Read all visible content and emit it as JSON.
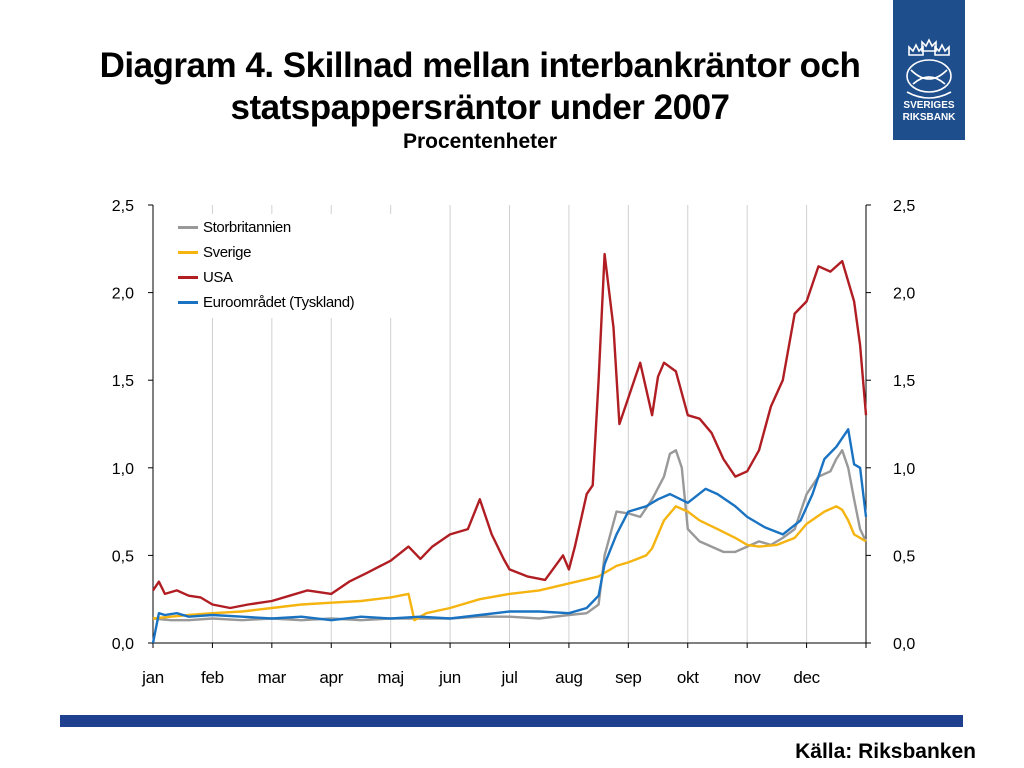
{
  "header": {
    "title_line1": "Diagram 4. Skillnad mellan interbankräntor och",
    "title_line2": "statspappersräntor under 2007",
    "subtitle": "Procentenheter"
  },
  "logo": {
    "line1": "SVERIGES",
    "line2": "RIKSBANK",
    "icon": "riksbank-crest-icon"
  },
  "footer": {
    "source": "Källa: Riksbanken"
  },
  "colors": {
    "brand": "#1f4e8c",
    "bar": "#1f3f8f"
  },
  "chart_data": {
    "type": "line",
    "ylim": [
      0,
      2.5
    ],
    "y_ticks": [
      "0,0",
      "0,5",
      "1,0",
      "1,5",
      "2,0",
      "2,5"
    ],
    "y_tick_values": [
      0,
      0.5,
      1.0,
      1.5,
      2.0,
      2.5
    ],
    "x_months": [
      "jan",
      "feb",
      "mar",
      "apr",
      "maj",
      "jun",
      "jul",
      "aug",
      "sep",
      "okt",
      "nov",
      "dec"
    ],
    "xlim": [
      0,
      12
    ],
    "grid": "vertical",
    "legend_position": "top-left",
    "series": [
      {
        "name": "Storbritannien",
        "color": "#999999",
        "x": [
          0,
          0.3,
          0.6,
          1.0,
          1.5,
          2.0,
          2.5,
          3.0,
          3.5,
          4.0,
          4.5,
          5.0,
          5.5,
          6.0,
          6.5,
          7.0,
          7.3,
          7.5,
          7.6,
          7.8,
          8.0,
          8.2,
          8.4,
          8.6,
          8.7,
          8.8,
          8.9,
          9.0,
          9.2,
          9.4,
          9.6,
          9.8,
          10.0,
          10.2,
          10.4,
          10.6,
          10.8,
          11.0,
          11.2,
          11.4,
          11.5,
          11.6,
          11.7,
          11.8,
          11.9,
          12.0
        ],
        "y": [
          0.14,
          0.13,
          0.13,
          0.14,
          0.13,
          0.14,
          0.13,
          0.14,
          0.13,
          0.14,
          0.14,
          0.14,
          0.15,
          0.15,
          0.14,
          0.16,
          0.17,
          0.22,
          0.5,
          0.75,
          0.74,
          0.72,
          0.82,
          0.95,
          1.08,
          1.1,
          1.0,
          0.65,
          0.58,
          0.55,
          0.52,
          0.52,
          0.55,
          0.58,
          0.56,
          0.6,
          0.65,
          0.85,
          0.95,
          0.98,
          1.05,
          1.1,
          1.0,
          0.82,
          0.65,
          0.58
        ]
      },
      {
        "name": "Sverige",
        "color": "#f5b40f",
        "x": [
          0,
          0.3,
          0.6,
          1.0,
          1.5,
          2.0,
          2.5,
          3.0,
          3.5,
          4.0,
          4.3,
          4.4,
          4.6,
          5.0,
          5.5,
          6.0,
          6.5,
          7.0,
          7.5,
          7.8,
          8.0,
          8.3,
          8.4,
          8.6,
          8.8,
          9.0,
          9.2,
          9.5,
          9.8,
          10.0,
          10.2,
          10.5,
          10.8,
          11.0,
          11.3,
          11.5,
          11.6,
          11.7,
          11.8,
          12.0
        ],
        "y": [
          0.14,
          0.15,
          0.16,
          0.17,
          0.18,
          0.2,
          0.22,
          0.23,
          0.24,
          0.26,
          0.28,
          0.13,
          0.17,
          0.2,
          0.25,
          0.28,
          0.3,
          0.34,
          0.38,
          0.44,
          0.46,
          0.5,
          0.54,
          0.7,
          0.78,
          0.75,
          0.7,
          0.65,
          0.6,
          0.56,
          0.55,
          0.56,
          0.6,
          0.68,
          0.75,
          0.78,
          0.76,
          0.7,
          0.62,
          0.58
        ]
      },
      {
        "name": "USA",
        "color": "#b01e23",
        "x": [
          0,
          0.1,
          0.2,
          0.4,
          0.6,
          0.8,
          1.0,
          1.3,
          1.6,
          2.0,
          2.3,
          2.6,
          3.0,
          3.3,
          3.6,
          4.0,
          4.3,
          4.5,
          4.7,
          5.0,
          5.3,
          5.5,
          5.7,
          5.9,
          6.0,
          6.3,
          6.6,
          6.9,
          7.0,
          7.1,
          7.3,
          7.4,
          7.5,
          7.6,
          7.75,
          7.85,
          7.95,
          8.05,
          8.2,
          8.4,
          8.5,
          8.6,
          8.8,
          9.0,
          9.2,
          9.4,
          9.6,
          9.8,
          10.0,
          10.2,
          10.4,
          10.6,
          10.8,
          11.0,
          11.2,
          11.4,
          11.6,
          11.8,
          11.9,
          12.0
        ],
        "y": [
          0.3,
          0.35,
          0.28,
          0.3,
          0.27,
          0.26,
          0.22,
          0.2,
          0.22,
          0.24,
          0.27,
          0.3,
          0.28,
          0.35,
          0.4,
          0.47,
          0.55,
          0.48,
          0.55,
          0.62,
          0.65,
          0.82,
          0.62,
          0.48,
          0.42,
          0.38,
          0.36,
          0.5,
          0.42,
          0.55,
          0.85,
          0.9,
          1.5,
          2.22,
          1.8,
          1.25,
          1.35,
          1.45,
          1.6,
          1.3,
          1.52,
          1.6,
          1.55,
          1.3,
          1.28,
          1.2,
          1.05,
          0.95,
          0.98,
          1.1,
          1.35,
          1.5,
          1.88,
          1.95,
          2.15,
          2.12,
          2.18,
          1.95,
          1.7,
          1.3
        ]
      },
      {
        "name": "Euroområdet (Tyskland)",
        "color": "#1a73c2",
        "x": [
          0,
          0.1,
          0.2,
          0.4,
          0.6,
          1.0,
          1.5,
          2.0,
          2.5,
          3.0,
          3.5,
          4.0,
          4.5,
          5.0,
          5.5,
          6.0,
          6.5,
          7.0,
          7.3,
          7.5,
          7.6,
          7.8,
          8.0,
          8.3,
          8.5,
          8.7,
          9.0,
          9.3,
          9.5,
          9.8,
          10.0,
          10.3,
          10.6,
          10.9,
          11.1,
          11.3,
          11.5,
          11.7,
          11.8,
          11.9,
          12.0
        ],
        "y": [
          0.0,
          0.17,
          0.16,
          0.17,
          0.15,
          0.16,
          0.15,
          0.14,
          0.15,
          0.13,
          0.15,
          0.14,
          0.15,
          0.14,
          0.16,
          0.18,
          0.18,
          0.17,
          0.2,
          0.27,
          0.45,
          0.62,
          0.75,
          0.78,
          0.82,
          0.85,
          0.8,
          0.88,
          0.85,
          0.78,
          0.72,
          0.66,
          0.62,
          0.7,
          0.85,
          1.05,
          1.12,
          1.22,
          1.02,
          1.0,
          0.72
        ]
      }
    ]
  }
}
